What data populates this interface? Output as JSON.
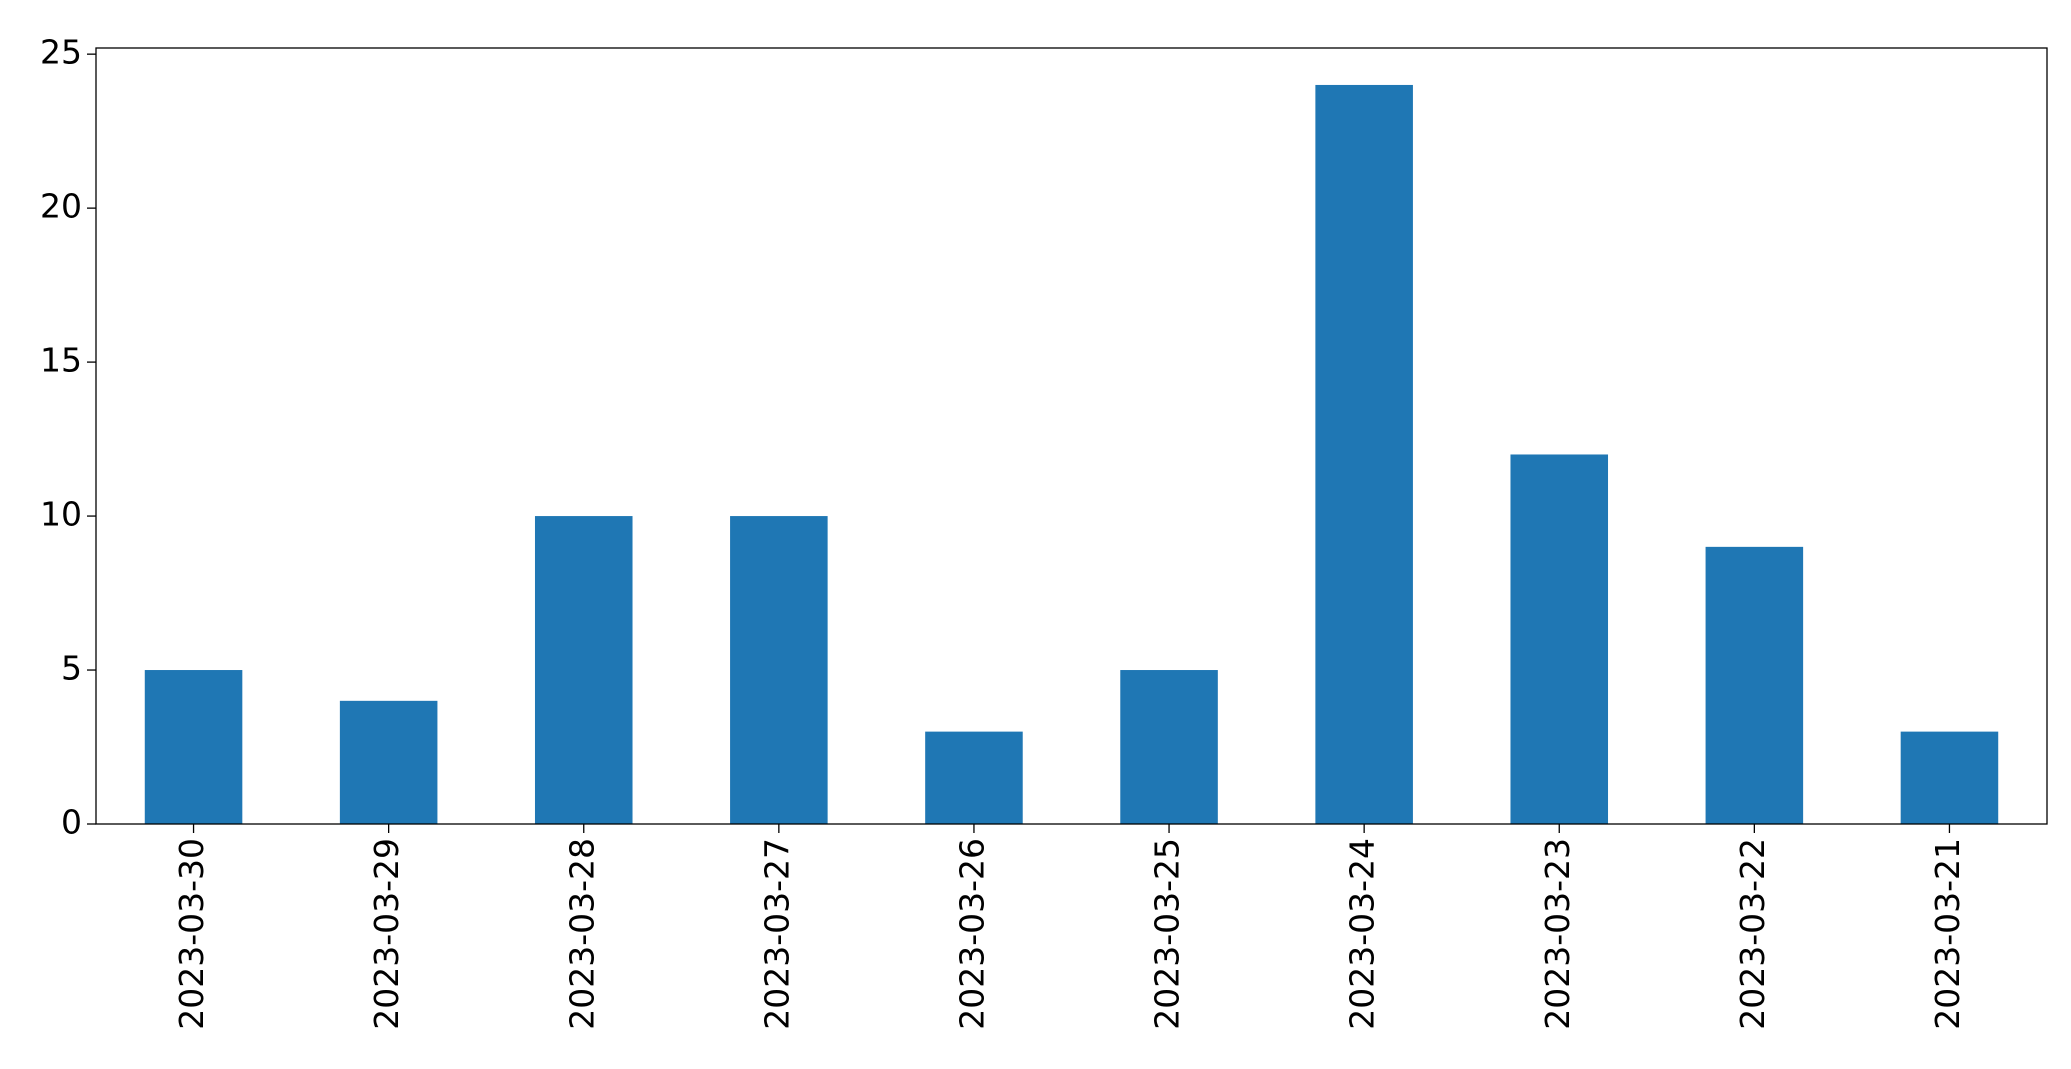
{
  "chart_data": {
    "type": "bar",
    "categories": [
      "2023-03-30",
      "2023-03-29",
      "2023-03-28",
      "2023-03-27",
      "2023-03-26",
      "2023-03-25",
      "2023-03-24",
      "2023-03-23",
      "2023-03-22",
      "2023-03-21"
    ],
    "values": [
      5,
      4,
      10,
      10,
      3,
      5,
      24,
      12,
      9,
      3
    ],
    "color": "#1f77b4",
    "ylim": [
      0,
      25.2
    ],
    "yticks": [
      0,
      5,
      10,
      15,
      20,
      25
    ],
    "grid": false
  }
}
